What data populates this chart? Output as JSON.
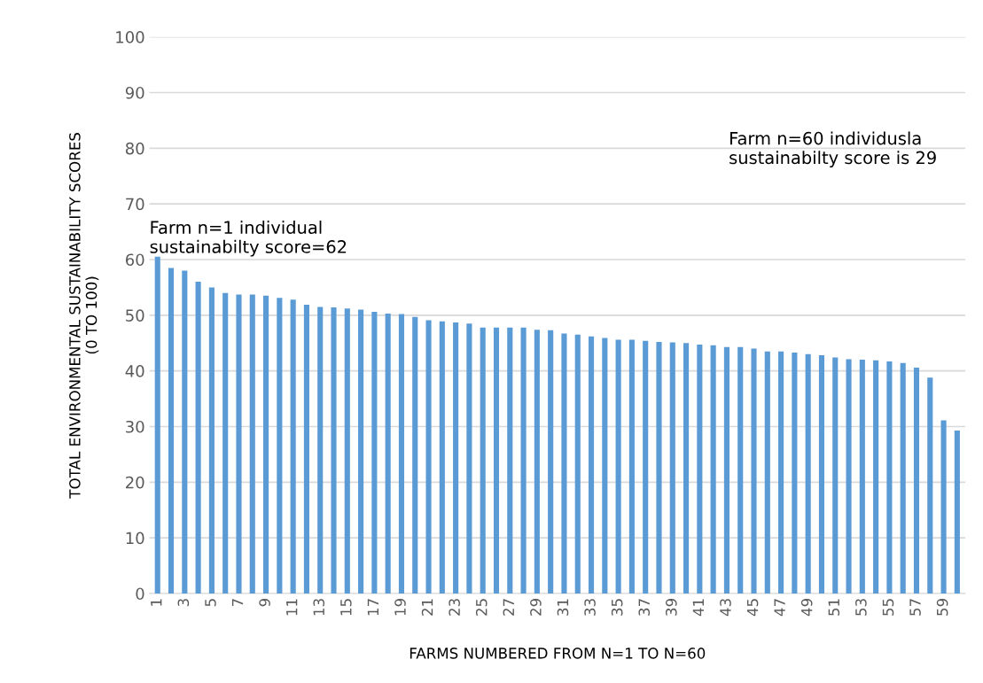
{
  "chart_data": {
    "type": "bar",
    "xlabel": "FARMS NUMBERED FROM N=1 TO N=60",
    "ylabel": "TOTAL ENVIRONMENTAL SUSTAINABILITY SCORES\n(0 TO 100)",
    "categories": [
      "1",
      null,
      "3",
      null,
      "5",
      null,
      "7",
      null,
      "9",
      null,
      "11",
      null,
      "13",
      null,
      "15",
      null,
      "17",
      null,
      "19",
      null,
      "21",
      null,
      "23",
      null,
      "25",
      null,
      "27",
      null,
      "29",
      null,
      "31",
      null,
      "33",
      null,
      "35",
      null,
      "37",
      null,
      "39",
      null,
      "41",
      null,
      "43",
      null,
      "45",
      null,
      "47",
      null,
      "49",
      null,
      "51",
      null,
      "53",
      null,
      "55",
      null,
      "57",
      null,
      "59",
      null
    ],
    "values": [
      60.5,
      58.5,
      58,
      56,
      55,
      54,
      53.7,
      53.7,
      53.5,
      53.1,
      52.8,
      51.9,
      51.5,
      51.4,
      51.2,
      51,
      50.6,
      50.3,
      50.2,
      49.7,
      49.1,
      48.9,
      48.7,
      48.5,
      47.8,
      47.8,
      47.8,
      47.8,
      47.4,
      47.3,
      46.7,
      46.5,
      46.2,
      45.9,
      45.6,
      45.6,
      45.4,
      45.2,
      45.1,
      45,
      44.7,
      44.6,
      44.3,
      44.3,
      44,
      43.5,
      43.5,
      43.3,
      43,
      42.8,
      42.4,
      42.1,
      42,
      41.9,
      41.7,
      41.4,
      40.6,
      38.8,
      31.1,
      29.3
    ],
    "color": "#5b9bd5",
    "ylim": [
      0,
      100
    ],
    "yticks": [
      0,
      10,
      20,
      30,
      40,
      50,
      60,
      70,
      80,
      90,
      100
    ],
    "grid": "y",
    "annotations": [
      "Farm n=1 individual\nsustainabilty score=62",
      "Farm n=60 individusla\nsustainabilty score is 29"
    ]
  }
}
